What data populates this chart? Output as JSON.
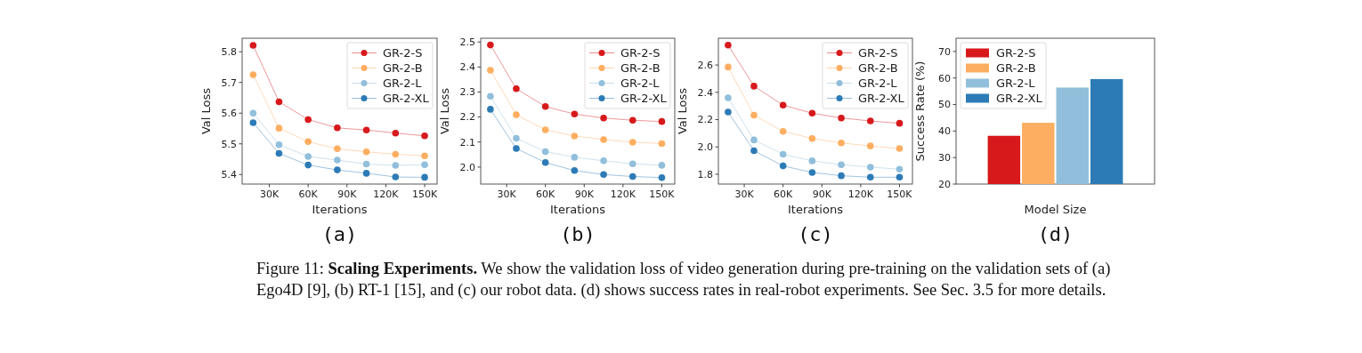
{
  "chart_data": [
    {
      "type": "line",
      "xlabel": "Iterations",
      "ylabel": "Val Loss",
      "annotations": [
        "(a)"
      ],
      "x": [
        17500,
        37500,
        60000,
        82500,
        105000,
        127500,
        150000
      ],
      "xlim": [
        9000,
        159600
      ],
      "xticks": [
        {
          "value": 30000,
          "label": "30K"
        },
        {
          "value": 60000,
          "label": "60K"
        },
        {
          "value": 90000,
          "label": "90K"
        },
        {
          "value": 120000,
          "label": "120K"
        },
        {
          "value": 150000,
          "label": "150K"
        }
      ],
      "ylim": [
        5.369,
        5.844
      ],
      "yticks": [
        5.4,
        5.5,
        5.6,
        5.7,
        5.8
      ],
      "legend": "top right",
      "marker": "circle",
      "series": [
        {
          "name": "GR-2-S",
          "color": "#d7191c",
          "values": [
            5.821,
            5.637,
            5.579,
            5.552,
            5.545,
            5.535,
            5.526
          ]
        },
        {
          "name": "GR-2-B",
          "color": "#fdae61",
          "values": [
            5.725,
            5.551,
            5.507,
            5.484,
            5.474,
            5.466,
            5.461
          ]
        },
        {
          "name": "GR-2-L",
          "color": "#91bfdb",
          "values": [
            5.6,
            5.497,
            5.459,
            5.447,
            5.434,
            5.43,
            5.432
          ]
        },
        {
          "name": "GR-2-XL",
          "color": "#2c7bb6",
          "values": [
            5.569,
            5.469,
            5.431,
            5.415,
            5.404,
            5.392,
            5.391
          ]
        }
      ]
    },
    {
      "type": "line",
      "xlabel": "Iterations",
      "ylabel": "Val Loss",
      "annotations": [
        "(b)"
      ],
      "x": [
        17500,
        37500,
        60000,
        82500,
        105000,
        127500,
        150000
      ],
      "xlim": [
        10000,
        160000
      ],
      "xticks": [
        {
          "value": 30000,
          "label": "30K"
        },
        {
          "value": 60000,
          "label": "60K"
        },
        {
          "value": 90000,
          "label": "90K"
        },
        {
          "value": 120000,
          "label": "120K"
        },
        {
          "value": 150000,
          "label": "150K"
        }
      ],
      "ylim": [
        1.932,
        2.515
      ],
      "yticks": [
        {
          "value": 2,
          "label": "2.0"
        },
        2.1,
        2.2,
        2.3,
        2.4,
        2.5
      ],
      "legend": "top right",
      "marker": "circle",
      "series": [
        {
          "name": "GR-2-S",
          "color": "#d7191c",
          "values": [
            2.488,
            2.313,
            2.242,
            2.212,
            2.196,
            2.187,
            2.182
          ]
        },
        {
          "name": "GR-2-B",
          "color": "#fdae61",
          "values": [
            2.387,
            2.209,
            2.149,
            2.124,
            2.11,
            2.099,
            2.094
          ]
        },
        {
          "name": "GR-2-L",
          "color": "#91bfdb",
          "values": [
            2.283,
            2.115,
            2.062,
            2.039,
            2.025,
            2.013,
            2.007
          ]
        },
        {
          "name": "GR-2-XL",
          "color": "#2c7bb6",
          "values": [
            2.231,
            2.074,
            2.018,
            1.986,
            1.97,
            1.962,
            1.958
          ]
        }
      ]
    },
    {
      "type": "line",
      "xlabel": "Iterations",
      "ylabel": "Val Loss",
      "annotations": [
        "(c)"
      ],
      "x": [
        17500,
        37500,
        60000,
        82500,
        105000,
        127500,
        150000
      ],
      "xlim": [
        10000,
        160000
      ],
      "xticks": [
        {
          "value": 30000,
          "label": "30K"
        },
        {
          "value": 60000,
          "label": "60K"
        },
        {
          "value": 90000,
          "label": "90K"
        },
        {
          "value": 120000,
          "label": "120K"
        },
        {
          "value": 150000,
          "label": "150K"
        }
      ],
      "ylim": [
        1.728,
        2.796
      ],
      "yticks": [
        1.8,
        {
          "value": 2,
          "label": "2.0"
        },
        2.2,
        2.4,
        2.6
      ],
      "legend": "top right",
      "marker": "circle",
      "series": [
        {
          "name": "GR-2-S",
          "color": "#d7191c",
          "values": [
            2.746,
            2.445,
            2.306,
            2.247,
            2.212,
            2.19,
            2.173
          ]
        },
        {
          "name": "GR-2-B",
          "color": "#fdae61",
          "values": [
            2.585,
            2.232,
            2.114,
            2.062,
            2.029,
            2.007,
            1.988
          ]
        },
        {
          "name": "GR-2-L",
          "color": "#91bfdb",
          "values": [
            2.36,
            2.051,
            1.946,
            1.898,
            1.87,
            1.852,
            1.837
          ]
        },
        {
          "name": "GR-2-XL",
          "color": "#2c7bb6",
          "values": [
            2.255,
            1.972,
            1.861,
            1.813,
            1.789,
            1.778,
            1.778
          ]
        }
      ]
    },
    {
      "type": "bar",
      "xlabel": "Model Size",
      "ylabel": "Success Rate (%)",
      "annotations": [
        "(d)"
      ],
      "categories": [
        null
      ],
      "ylim": [
        20,
        75
      ],
      "yticks": [
        20,
        30,
        40,
        50,
        60,
        70
      ],
      "legend": "top left",
      "series": [
        {
          "name": "GR-2-S",
          "color": "#d7191c",
          "values": [
            38.2
          ]
        },
        {
          "name": "GR-2-B",
          "color": "#fdae61",
          "values": [
            43.1
          ]
        },
        {
          "name": "GR-2-L",
          "color": "#91bfdb",
          "values": [
            56.4
          ]
        },
        {
          "name": "GR-2-XL",
          "color": "#2c7bb6",
          "values": [
            59.6
          ]
        }
      ]
    },
    {
      "type": "other",
      "annotations": [
        "Figure 11: ",
        "Scaling Experiments.",
        " We show the validation loss of video generation during pre-training on the validation sets of (a) Ego4D [9], (b) RT-1 [15], and (c) our robot data. (d) shows success rates in real-robot experiments. See Sec. 3.5 for more details."
      ]
    }
  ]
}
